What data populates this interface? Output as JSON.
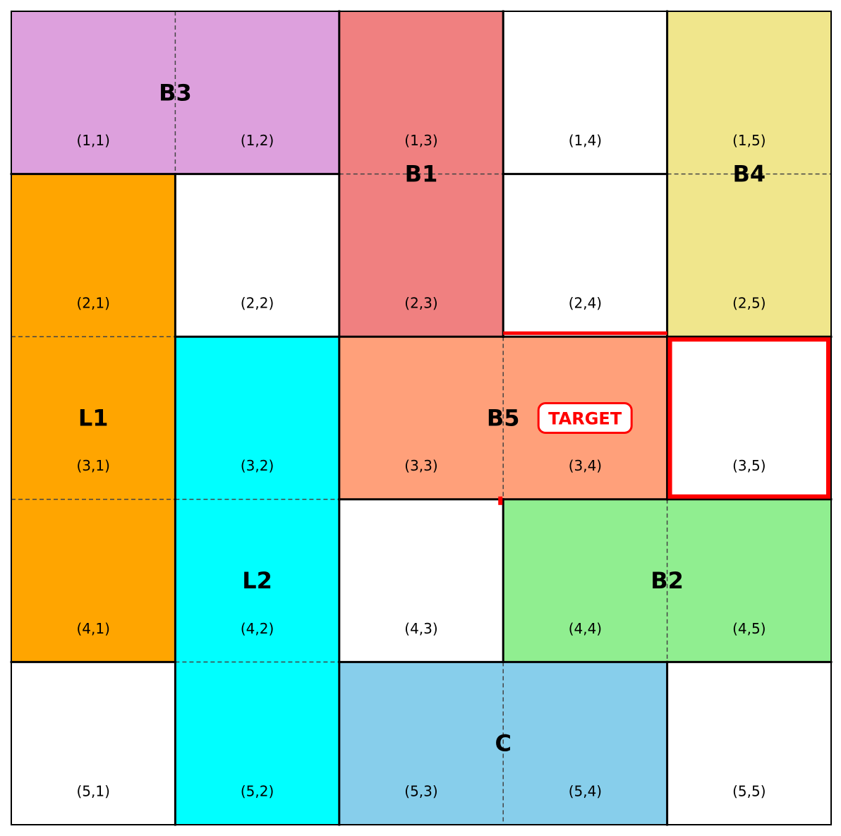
{
  "grid": {
    "rows": 5,
    "cols": 5
  },
  "cells": [
    {
      "r": 1,
      "c": 1,
      "label": "(1,1)"
    },
    {
      "r": 1,
      "c": 2,
      "label": "(1,2)"
    },
    {
      "r": 1,
      "c": 3,
      "label": "(1,3)"
    },
    {
      "r": 1,
      "c": 4,
      "label": "(1,4)"
    },
    {
      "r": 1,
      "c": 5,
      "label": "(1,5)"
    },
    {
      "r": 2,
      "c": 1,
      "label": "(2,1)"
    },
    {
      "r": 2,
      "c": 2,
      "label": "(2,2)"
    },
    {
      "r": 2,
      "c": 3,
      "label": "(2,3)"
    },
    {
      "r": 2,
      "c": 4,
      "label": "(2,4)"
    },
    {
      "r": 2,
      "c": 5,
      "label": "(2,5)"
    },
    {
      "r": 3,
      "c": 1,
      "label": "(3,1)"
    },
    {
      "r": 3,
      "c": 2,
      "label": "(3,2)"
    },
    {
      "r": 3,
      "c": 3,
      "label": "(3,3)"
    },
    {
      "r": 3,
      "c": 4,
      "label": "(3,4)"
    },
    {
      "r": 3,
      "c": 5,
      "label": "(3,5)"
    },
    {
      "r": 4,
      "c": 1,
      "label": "(4,1)"
    },
    {
      "r": 4,
      "c": 2,
      "label": "(4,2)"
    },
    {
      "r": 4,
      "c": 3,
      "label": "(4,3)"
    },
    {
      "r": 4,
      "c": 4,
      "label": "(4,4)"
    },
    {
      "r": 4,
      "c": 5,
      "label": "(4,5)"
    },
    {
      "r": 5,
      "c": 1,
      "label": "(5,1)"
    },
    {
      "r": 5,
      "c": 2,
      "label": "(5,2)"
    },
    {
      "r": 5,
      "c": 3,
      "label": "(5,3)"
    },
    {
      "r": 5,
      "c": 4,
      "label": "(5,4)"
    },
    {
      "r": 5,
      "c": 5,
      "label": "(5,5)"
    }
  ],
  "blocks": [
    {
      "name": "B3",
      "color": "#dda0dd",
      "row": 1,
      "col": 1,
      "rowSpan": 1,
      "colSpan": 2
    },
    {
      "name": "B1",
      "color": "#f08080",
      "row": 1,
      "col": 3,
      "rowSpan": 2,
      "colSpan": 1
    },
    {
      "name": "B4",
      "color": "#f0e68c",
      "row": 1,
      "col": 5,
      "rowSpan": 2,
      "colSpan": 1
    },
    {
      "name": "L1",
      "color": "#ffa500",
      "row": 2,
      "col": 1,
      "rowSpan": 3,
      "colSpan": 1
    },
    {
      "name": "L2",
      "color": "#00ffff",
      "row": 3,
      "col": 2,
      "rowSpan": 3,
      "colSpan": 1
    },
    {
      "name": "B5",
      "color": "#ffa07a",
      "row": 3,
      "col": 3,
      "rowSpan": 1,
      "colSpan": 2
    },
    {
      "name": "B2",
      "color": "#90ee90",
      "row": 4,
      "col": 4,
      "rowSpan": 1,
      "colSpan": 2
    },
    {
      "name": "C",
      "color": "#87ceeb",
      "row": 5,
      "col": 3,
      "rowSpan": 1,
      "colSpan": 2
    }
  ],
  "target": {
    "label": "TARGET",
    "color": "#ff0000",
    "block": "B5",
    "cell": {
      "row": 3,
      "col": 5
    }
  }
}
